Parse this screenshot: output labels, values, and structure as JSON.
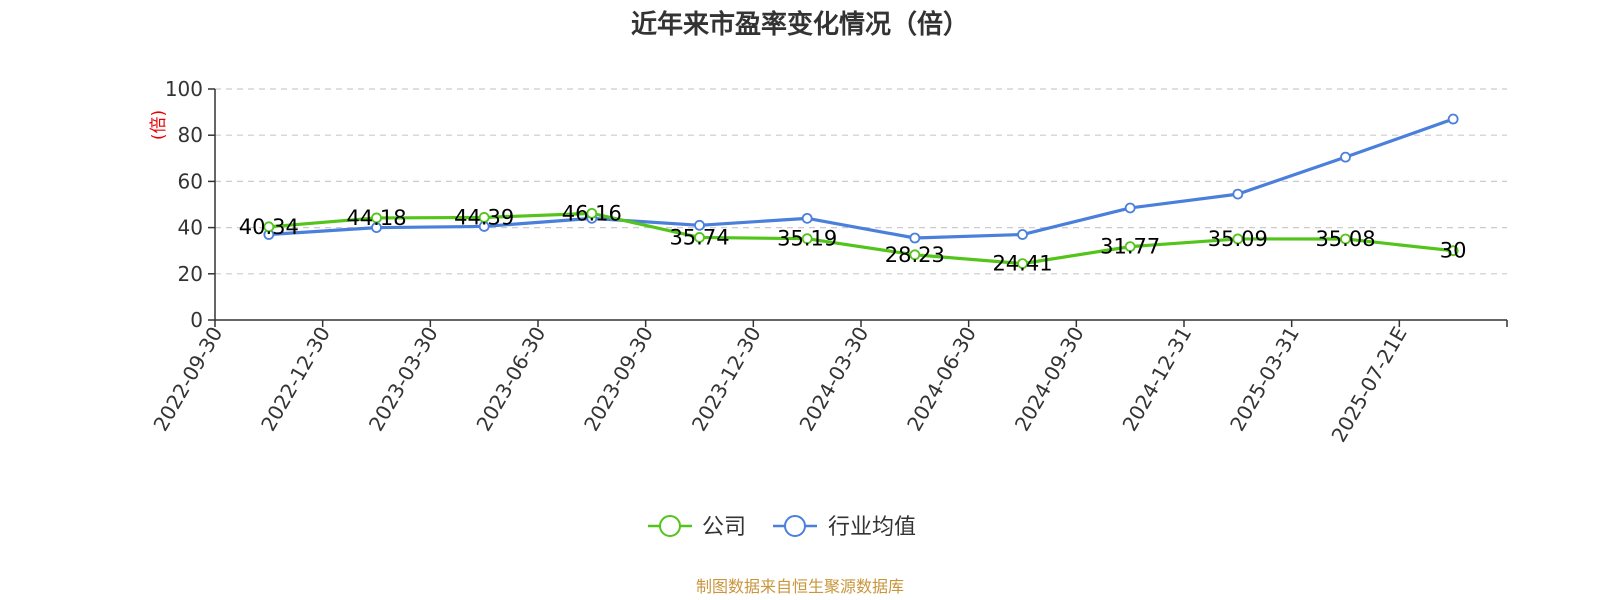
{
  "chart_data": {
    "type": "line",
    "title": "近年来市盈率变化情况（倍）",
    "ylabel": "(倍)",
    "xlabel": "",
    "ylim": [
      0,
      100
    ],
    "yticks": [
      "0",
      "20",
      "40",
      "60",
      "80",
      "100"
    ],
    "categories": [
      "2022-09-30",
      "2022-12-30",
      "2023-03-30",
      "2023-06-30",
      "2023-09-30",
      "2023-12-30",
      "2024-03-30",
      "2024-06-30",
      "2024-09-30",
      "2024-12-31",
      "2025-03-31",
      "2025-07-21E"
    ],
    "series": [
      {
        "name": "公司",
        "color": "#52c41a",
        "values": [
          40.34,
          44.18,
          44.39,
          46.16,
          35.74,
          35.19,
          28.23,
          24.41,
          31.77,
          35.09,
          35.08,
          30
        ],
        "labels": [
          "40.34",
          "44.18",
          "44.39",
          "46.16",
          "35.74",
          "35.19",
          "28.23",
          "24.41",
          "31.77",
          "35.09",
          "35.08",
          "30"
        ]
      },
      {
        "name": "行业均值",
        "color": "#4a7fdc",
        "values": [
          37,
          40,
          40.5,
          44,
          41,
          44,
          35.5,
          37,
          48.5,
          54.5,
          70.5,
          87
        ]
      }
    ],
    "grid": true,
    "legend_position": "bottom-center"
  },
  "footer": {
    "source": "制图数据来自恒生聚源数据库"
  }
}
